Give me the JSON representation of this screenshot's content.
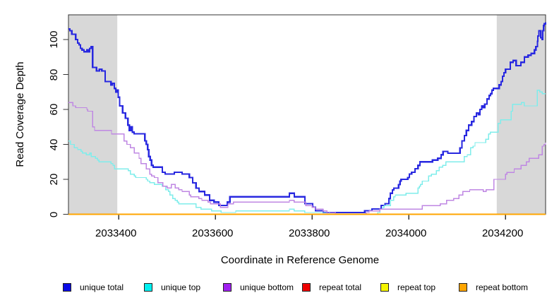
{
  "chart_data": {
    "type": "line",
    "step": true,
    "title": "",
    "xlabel": "Coordinate in Reference Genome",
    "ylabel": "Read Coverage Depth",
    "xlim": [
      2033296,
      2034283
    ],
    "ylim": [
      0,
      114
    ],
    "x_ticks": [
      "2033400",
      "2033600",
      "2033800",
      "2034000",
      "2034200"
    ],
    "y_ticks": [
      "0",
      "20",
      "40",
      "60",
      "80",
      "100"
    ],
    "grid": false,
    "legend_position": "bottom",
    "shade_color": "#D8D8D8",
    "axis_color": "#333333",
    "shaded_regions": [
      {
        "from": 2033296,
        "to": 2033397
      },
      {
        "from": 2034182,
        "to": 2034283
      }
    ],
    "series": [
      {
        "name": "unique total",
        "legend_color": "#0A0AE6",
        "line_color": "#2828E0",
        "width": 2.2,
        "points": [
          [
            2033296,
            106
          ],
          [
            2033299,
            105
          ],
          [
            2033303,
            103
          ],
          [
            2033311,
            100
          ],
          [
            2033315,
            98
          ],
          [
            2033318,
            97
          ],
          [
            2033321,
            95
          ],
          [
            2033324,
            94
          ],
          [
            2033328,
            93
          ],
          [
            2033334,
            94
          ],
          [
            2033337,
            93
          ],
          [
            2033340,
            95
          ],
          [
            2033343,
            96
          ],
          [
            2033346,
            84
          ],
          [
            2033354,
            82
          ],
          [
            2033360,
            83
          ],
          [
            2033365,
            82
          ],
          [
            2033372,
            76
          ],
          [
            2033384,
            74
          ],
          [
            2033387,
            75
          ],
          [
            2033391,
            72
          ],
          [
            2033394,
            70
          ],
          [
            2033397,
            71
          ],
          [
            2033399,
            67
          ],
          [
            2033402,
            62
          ],
          [
            2033408,
            58
          ],
          [
            2033414,
            55
          ],
          [
            2033419,
            51
          ],
          [
            2033422,
            48
          ],
          [
            2033425,
            50
          ],
          [
            2033428,
            47
          ],
          [
            2033432,
            46
          ],
          [
            2033454,
            42
          ],
          [
            2033457,
            40
          ],
          [
            2033460,
            37
          ],
          [
            2033462,
            33
          ],
          [
            2033465,
            31
          ],
          [
            2033468,
            28
          ],
          [
            2033471,
            27
          ],
          [
            2033490,
            24
          ],
          [
            2033496,
            23
          ],
          [
            2033515,
            24
          ],
          [
            2033531,
            23
          ],
          [
            2033546,
            21
          ],
          [
            2033553,
            18
          ],
          [
            2033560,
            15
          ],
          [
            2033566,
            13
          ],
          [
            2033578,
            11
          ],
          [
            2033588,
            8
          ],
          [
            2033597,
            7
          ],
          [
            2033607,
            5
          ],
          [
            2033625,
            7
          ],
          [
            2033630,
            10
          ],
          [
            2033753,
            12
          ],
          [
            2033763,
            10
          ],
          [
            2033785,
            6
          ],
          [
            2033801,
            4
          ],
          [
            2033807,
            2
          ],
          [
            2033823,
            1
          ],
          [
            2033909,
            2
          ],
          [
            2033924,
            3
          ],
          [
            2033943,
            5
          ],
          [
            2033951,
            6
          ],
          [
            2033959,
            9
          ],
          [
            2033962,
            12
          ],
          [
            2033966,
            14
          ],
          [
            2033969,
            15
          ],
          [
            2033979,
            17
          ],
          [
            2033982,
            19
          ],
          [
            2033984,
            20
          ],
          [
            2033998,
            21
          ],
          [
            2034001,
            23
          ],
          [
            2034006,
            24
          ],
          [
            2034013,
            26
          ],
          [
            2034019,
            28
          ],
          [
            2034023,
            30
          ],
          [
            2034049,
            31
          ],
          [
            2034060,
            32
          ],
          [
            2034067,
            34
          ],
          [
            2034071,
            36
          ],
          [
            2034081,
            35
          ],
          [
            2034106,
            38
          ],
          [
            2034110,
            42
          ],
          [
            2034115,
            45
          ],
          [
            2034119,
            48
          ],
          [
            2034124,
            51
          ],
          [
            2034130,
            53
          ],
          [
            2034135,
            56
          ],
          [
            2034140,
            58
          ],
          [
            2034144,
            57
          ],
          [
            2034147,
            60
          ],
          [
            2034151,
            62
          ],
          [
            2034154,
            61
          ],
          [
            2034157,
            63
          ],
          [
            2034162,
            66
          ],
          [
            2034166,
            68
          ],
          [
            2034169,
            69
          ],
          [
            2034172,
            71
          ],
          [
            2034175,
            72
          ],
          [
            2034187,
            74
          ],
          [
            2034191,
            76
          ],
          [
            2034194,
            79
          ],
          [
            2034197,
            81
          ],
          [
            2034200,
            83
          ],
          [
            2034210,
            87
          ],
          [
            2034216,
            88
          ],
          [
            2034222,
            85
          ],
          [
            2034232,
            87
          ],
          [
            2034239,
            90
          ],
          [
            2034247,
            91
          ],
          [
            2034253,
            92
          ],
          [
            2034260,
            94
          ],
          [
            2034263,
            96
          ],
          [
            2034266,
            99
          ],
          [
            2034267,
            102
          ],
          [
            2034269,
            105
          ],
          [
            2034273,
            101
          ],
          [
            2034276,
            100
          ],
          [
            2034277,
            105
          ],
          [
            2034279,
            108
          ],
          [
            2034280,
            109
          ],
          [
            2034283,
            110
          ]
        ]
      },
      {
        "name": "unique top",
        "legend_color": "#00F0F0",
        "line_color": "#7FEDEB",
        "width": 1.4,
        "points": [
          [
            2033296,
            42
          ],
          [
            2033300,
            40
          ],
          [
            2033308,
            38
          ],
          [
            2033315,
            37
          ],
          [
            2033322,
            36
          ],
          [
            2033325,
            35
          ],
          [
            2033333,
            34
          ],
          [
            2033340,
            35
          ],
          [
            2033343,
            33
          ],
          [
            2033352,
            32
          ],
          [
            2033356,
            31
          ],
          [
            2033359,
            30
          ],
          [
            2033384,
            29
          ],
          [
            2033388,
            28
          ],
          [
            2033391,
            26
          ],
          [
            2033420,
            25
          ],
          [
            2033424,
            23
          ],
          [
            2033432,
            22
          ],
          [
            2033435,
            21
          ],
          [
            2033457,
            20
          ],
          [
            2033460,
            19
          ],
          [
            2033464,
            18
          ],
          [
            2033474,
            17
          ],
          [
            2033490,
            16
          ],
          [
            2033497,
            14
          ],
          [
            2033503,
            13
          ],
          [
            2033506,
            11
          ],
          [
            2033512,
            9
          ],
          [
            2033517,
            8
          ],
          [
            2033521,
            7
          ],
          [
            2033524,
            6
          ],
          [
            2033560,
            4
          ],
          [
            2033570,
            3
          ],
          [
            2033592,
            2
          ],
          [
            2033612,
            1
          ],
          [
            2033642,
            2
          ],
          [
            2033753,
            3
          ],
          [
            2033763,
            2
          ],
          [
            2033785,
            1
          ],
          [
            2033836,
            0
          ],
          [
            2033936,
            1
          ],
          [
            2033940,
            3
          ],
          [
            2033946,
            4
          ],
          [
            2033949,
            5
          ],
          [
            2033962,
            8
          ],
          [
            2033969,
            10
          ],
          [
            2033972,
            11
          ],
          [
            2033994,
            12
          ],
          [
            2034019,
            15
          ],
          [
            2034022,
            16
          ],
          [
            2034024,
            17
          ],
          [
            2034028,
            19
          ],
          [
            2034041,
            22
          ],
          [
            2034047,
            23
          ],
          [
            2034057,
            25
          ],
          [
            2034063,
            27
          ],
          [
            2034070,
            28
          ],
          [
            2034077,
            30
          ],
          [
            2034115,
            33
          ],
          [
            2034121,
            34
          ],
          [
            2034128,
            38
          ],
          [
            2034133,
            39
          ],
          [
            2034137,
            41
          ],
          [
            2034159,
            43
          ],
          [
            2034165,
            46
          ],
          [
            2034169,
            47
          ],
          [
            2034185,
            52
          ],
          [
            2034190,
            54
          ],
          [
            2034212,
            59
          ],
          [
            2034215,
            63
          ],
          [
            2034233,
            64
          ],
          [
            2034239,
            62
          ],
          [
            2034266,
            71
          ],
          [
            2034271,
            70
          ],
          [
            2034276,
            69
          ],
          [
            2034283,
            69
          ]
        ]
      },
      {
        "name": "unique bottom",
        "legend_color": "#A020F0",
        "line_color": "#BF87E3",
        "width": 1.4,
        "points": [
          [
            2033296,
            64
          ],
          [
            2033305,
            62
          ],
          [
            2033311,
            61
          ],
          [
            2033334,
            60
          ],
          [
            2033336,
            59
          ],
          [
            2033346,
            50
          ],
          [
            2033350,
            48
          ],
          [
            2033385,
            46
          ],
          [
            2033411,
            42
          ],
          [
            2033417,
            40
          ],
          [
            2033424,
            38
          ],
          [
            2033432,
            35
          ],
          [
            2033442,
            32
          ],
          [
            2033446,
            29
          ],
          [
            2033457,
            26
          ],
          [
            2033464,
            23
          ],
          [
            2033468,
            22
          ],
          [
            2033474,
            21
          ],
          [
            2033481,
            18
          ],
          [
            2033491,
            16
          ],
          [
            2033500,
            15
          ],
          [
            2033509,
            17
          ],
          [
            2033517,
            15
          ],
          [
            2033524,
            14
          ],
          [
            2033531,
            13
          ],
          [
            2033546,
            11
          ],
          [
            2033549,
            10
          ],
          [
            2033566,
            9
          ],
          [
            2033572,
            8
          ],
          [
            2033585,
            7
          ],
          [
            2033590,
            6
          ],
          [
            2033610,
            4
          ],
          [
            2033626,
            6
          ],
          [
            2033637,
            7
          ],
          [
            2033753,
            8
          ],
          [
            2033763,
            7
          ],
          [
            2033787,
            5
          ],
          [
            2033800,
            4
          ],
          [
            2033807,
            3
          ],
          [
            2033823,
            2
          ],
          [
            2033831,
            1
          ],
          [
            2033848,
            0
          ],
          [
            2033912,
            1
          ],
          [
            2033918,
            2
          ],
          [
            2033940,
            3
          ],
          [
            2034028,
            5
          ],
          [
            2034065,
            6
          ],
          [
            2034078,
            8
          ],
          [
            2034093,
            9
          ],
          [
            2034104,
            11
          ],
          [
            2034112,
            13
          ],
          [
            2034126,
            14
          ],
          [
            2034154,
            13
          ],
          [
            2034160,
            14
          ],
          [
            2034176,
            20
          ],
          [
            2034200,
            23
          ],
          [
            2034203,
            24
          ],
          [
            2034218,
            26
          ],
          [
            2034232,
            28
          ],
          [
            2034243,
            30
          ],
          [
            2034249,
            32
          ],
          [
            2034269,
            34
          ],
          [
            2034276,
            39
          ],
          [
            2034280,
            40
          ],
          [
            2034283,
            41
          ]
        ]
      },
      {
        "name": "repeat total",
        "legend_color": "#EE0000",
        "line_color": "#EE0000",
        "width": 1.4,
        "points": [
          [
            2033296,
            0
          ],
          [
            2034283,
            0
          ]
        ]
      },
      {
        "name": "repeat top",
        "legend_color": "#F5F500",
        "line_color": "#F5F500",
        "width": 1.4,
        "points": [
          [
            2033296,
            0
          ],
          [
            2034283,
            0
          ]
        ]
      },
      {
        "name": "repeat bottom",
        "legend_color": "#FFA500",
        "line_color": "#FFA500",
        "width": 1.8,
        "points": [
          [
            2033296,
            0
          ],
          [
            2034283,
            0
          ]
        ]
      }
    ]
  }
}
